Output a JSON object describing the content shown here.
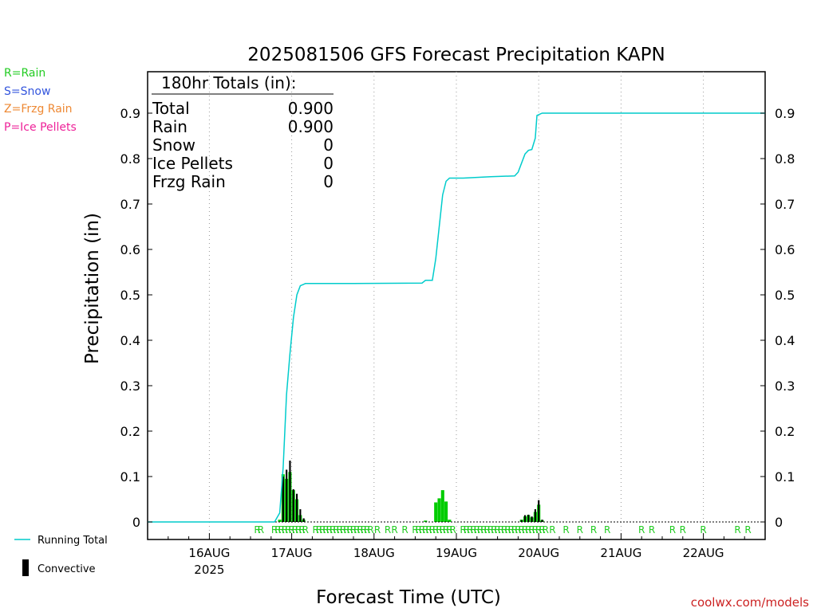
{
  "header": {
    "title": "2025081506 GFS Forecast Precipitation KAPN"
  },
  "legend_types": [
    {
      "text": "R=Rain",
      "color": "#22cc22"
    },
    {
      "text": "S=Snow",
      "color": "#3355dd"
    },
    {
      "text": "Z=Frzg Rain",
      "color": "#ee8833"
    },
    {
      "text": "P=Ice Pellets",
      "color": "#ee2299"
    }
  ],
  "legend_series": {
    "running_total": {
      "text": "Running Total",
      "color": "#00cccc"
    },
    "convective": {
      "text": "Convective",
      "color": "#000000"
    }
  },
  "totals_box": {
    "heading": "180hr Totals (in):",
    "rows": [
      {
        "label": "Total",
        "value": "0.900"
      },
      {
        "label": "Rain",
        "value": "0.900"
      },
      {
        "label": "Snow",
        "value": "0"
      },
      {
        "label": "Ice Pellets",
        "value": "0"
      },
      {
        "label": "Frzg Rain",
        "value": "0"
      }
    ]
  },
  "footer": {
    "credit": "coolwx.com/models"
  },
  "chart_data": {
    "type": "bar",
    "title": "2025081506 GFS Forecast Precipitation KAPN",
    "xlabel": "Forecast Time (UTC)",
    "ylabel": "Precipitation (in)",
    "ylim": [
      0,
      1.0
    ],
    "yticks": [
      0,
      0.1,
      0.2,
      0.3,
      0.4,
      0.5,
      0.6,
      0.7,
      0.8,
      0.9
    ],
    "yticks_right": true,
    "xlim_hours": [
      0,
      180
    ],
    "x_tick_labels": [
      {
        "hour": 18,
        "label": "16AUG",
        "sub": "2025"
      },
      {
        "hour": 42,
        "label": "17AUG",
        "sub": ""
      },
      {
        "hour": 66,
        "label": "18AUG",
        "sub": ""
      },
      {
        "hour": 90,
        "label": "19AUG",
        "sub": ""
      },
      {
        "hour": 114,
        "label": "20AUG",
        "sub": ""
      },
      {
        "hour": 138,
        "label": "21AUG",
        "sub": ""
      },
      {
        "hour": 162,
        "label": "22AUG",
        "sub": ""
      }
    ],
    "grid": "vertical-dotted",
    "running_total": {
      "name": "Running Total",
      "color": "#00cccc",
      "points": [
        [
          0,
          0
        ],
        [
          37,
          0
        ],
        [
          38.5,
          0.02
        ],
        [
          39.5,
          0.12
        ],
        [
          40.5,
          0.28
        ],
        [
          41.5,
          0.37
        ],
        [
          42.5,
          0.45
        ],
        [
          43.5,
          0.5
        ],
        [
          44.5,
          0.52
        ],
        [
          46,
          0.525
        ],
        [
          60,
          0.525
        ],
        [
          80,
          0.526
        ],
        [
          81,
          0.532
        ],
        [
          83,
          0.532
        ],
        [
          84,
          0.58
        ],
        [
          85,
          0.65
        ],
        [
          86,
          0.72
        ],
        [
          87,
          0.75
        ],
        [
          88,
          0.757
        ],
        [
          92,
          0.757
        ],
        [
          100,
          0.76
        ],
        [
          107,
          0.762
        ],
        [
          108,
          0.77
        ],
        [
          109,
          0.79
        ],
        [
          110,
          0.81
        ],
        [
          111,
          0.818
        ],
        [
          112,
          0.82
        ],
        [
          113,
          0.845
        ],
        [
          113.5,
          0.895
        ],
        [
          115,
          0.9
        ],
        [
          180,
          0.9
        ]
      ]
    },
    "precip_bars": {
      "name": "Rain",
      "color": "#00cc00",
      "points": [
        [
          38.5,
          0.005
        ],
        [
          39.5,
          0.105
        ],
        [
          40.5,
          0.095
        ],
        [
          41.5,
          0.11
        ],
        [
          42.5,
          0.07
        ],
        [
          43.5,
          0.05
        ],
        [
          44.5,
          0.015
        ],
        [
          45.5,
          0.005
        ],
        [
          81,
          0.003
        ],
        [
          84,
          0.043
        ],
        [
          85,
          0.052
        ],
        [
          86,
          0.07
        ],
        [
          87,
          0.045
        ],
        [
          88,
          0.005
        ],
        [
          109,
          0.005
        ],
        [
          110,
          0.012
        ],
        [
          111,
          0.015
        ],
        [
          112,
          0.01
        ],
        [
          113,
          0.022
        ],
        [
          114,
          0.038
        ],
        [
          115,
          0.004
        ]
      ]
    },
    "convective_bars": {
      "name": "Convective",
      "color": "#000000",
      "points": [
        [
          39.5,
          0.1
        ],
        [
          40.5,
          0.115
        ],
        [
          41.5,
          0.135
        ],
        [
          42.5,
          0.072
        ],
        [
          43.5,
          0.062
        ],
        [
          44.5,
          0.028
        ],
        [
          45.5,
          0.008
        ],
        [
          109,
          0.004
        ],
        [
          110,
          0.015
        ],
        [
          111,
          0.016
        ],
        [
          112,
          0.012
        ],
        [
          113,
          0.028
        ],
        [
          114,
          0.048
        ],
        [
          115,
          0.005
        ]
      ]
    },
    "ptype_marks": {
      "symbol": "R",
      "color": "#22cc22",
      "hours": [
        32,
        33,
        37,
        38,
        39,
        40,
        41,
        42,
        43,
        44,
        45,
        46,
        49,
        50,
        51,
        52,
        53,
        54,
        55,
        56,
        57,
        58,
        59,
        60,
        61,
        62,
        63,
        64,
        65,
        67,
        70,
        72,
        75,
        78,
        79,
        80,
        81,
        82,
        83,
        84,
        85,
        86,
        87,
        88,
        89,
        92,
        93,
        94,
        95,
        96,
        97,
        98,
        99,
        100,
        101,
        102,
        103,
        104,
        105,
        106,
        107,
        108,
        109,
        110,
        111,
        112,
        113,
        114,
        115,
        116,
        118,
        122,
        126,
        130,
        134,
        144,
        147,
        153,
        156,
        162,
        172,
        175
      ]
    }
  }
}
